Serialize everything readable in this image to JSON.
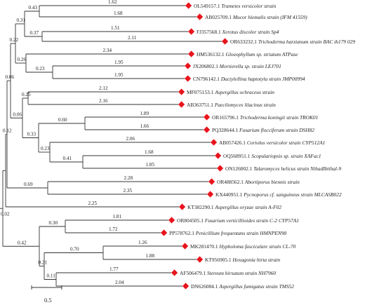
{
  "taxa": [
    {
      "accession": "OL549157.1",
      "organism": "Trametes versicolor strain"
    },
    {
      "accession": "AB025709.1",
      "organism": "Mucor hiemalis strain (IFM 41559)"
    },
    {
      "accession": "FJ357568.1",
      "organism": "Xerotus discolor strain Sp4"
    },
    {
      "accession": "OR633232.1",
      "organism": "Trichoderma harzianum strain BAC th179 029"
    },
    {
      "accession": "HM536132.1",
      "organism": "Gloeophyllum sp. striatum ATPase"
    },
    {
      "accession": "JX206802.1",
      "organism": "Mortierella sp. strain LEJ701"
    },
    {
      "accession": "CN796142.1",
      "organism": "Dactylellina haptotyla strain JMP00994"
    },
    {
      "accession": "MF075153.1",
      "organism": "Aspergillus ochraceus strain"
    },
    {
      "accession": "AB363751.1",
      "organism": "Paecilomyces lilacinus strain"
    },
    {
      "accession": "OR165796.1",
      "organism": "Trichoderma koningii strain TROK01"
    },
    {
      "accession": "PQ328644.1",
      "organism": "Fusarium flocciferum strain DSH82"
    },
    {
      "accession": "AB057426.1",
      "organism": "Coriolus versicolor strain CYP512A1"
    },
    {
      "accession": "OQ568951.1",
      "organism": "Scopulariopsis sp. strain XAFac1"
    },
    {
      "accession": "ON126002.1",
      "organism": "Talaromyces helicus strain NihadIbtihal-9"
    },
    {
      "accession": "OR488562.1",
      "organism": "Abortiporus biennis strain"
    },
    {
      "accession": "KX440951.1",
      "organism": "Pycnoporus cf. sanguineus strain MLCASB022"
    },
    {
      "accession": "KT382290.1",
      "organism": "Aspergillus oryzae strain A-F02"
    },
    {
      "accession": "OR804505.1",
      "organism": "Fusarium verticillioides strain C-2 CYP57A1"
    },
    {
      "accession": "PP578762.1",
      "organism": "Penicillium frequentans strain HMNPEN98"
    },
    {
      "accession": "MK281470.1",
      "organism": "Hypholoma fasciculare strain CL-70"
    },
    {
      "accession": "KT956905.1",
      "organism": "Hexagonia hirta strain"
    },
    {
      "accession": "AF506479.1",
      "organism": "Stereum hirsutum strain NH7960"
    },
    {
      "accession": "DN626084.1",
      "organism": "Aspergillus fumigatus strain TMS52"
    }
  ],
  "leaf_branch_lengths": [
    "1.62",
    "1.68",
    "1.51",
    "2.11",
    "2.34",
    "1.95",
    "1.95",
    "2.12",
    "2.16",
    "1.89",
    "1.66",
    "2.06",
    "1.68",
    "1.85",
    "2.28",
    "2.35",
    "2.25",
    "1.81",
    "1.72",
    "1.26",
    "1.88",
    "1.77",
    "2.04"
  ],
  "internal_branch_lengths": {
    "n_0_1": "0.43",
    "n_2_3": "0.37",
    "n_0_3": "0.31",
    "n_5_6": "0.23",
    "n_4_6": "0.26",
    "n_0_6": "0.22",
    "n_7_8": "0.25",
    "n_9_10": "0.60",
    "n_12_13": "0.41",
    "n_11_13": "0.23",
    "n_9_13": "0.33",
    "n_7_13": "0.06",
    "n_0_13": "0.06",
    "n_14_15": "0.69",
    "n_0_15": "0.12",
    "n_17_18": "0.30",
    "n_19_20": "0.70",
    "n_21_22": "0.11",
    "n_19_22": "0.21",
    "n_17_22": "0.42",
    "root": "0.02"
  },
  "scale_bar": {
    "label": "0.5"
  },
  "colors": {
    "marker": "#e8141c",
    "line": "#333333",
    "text": "#222222"
  }
}
